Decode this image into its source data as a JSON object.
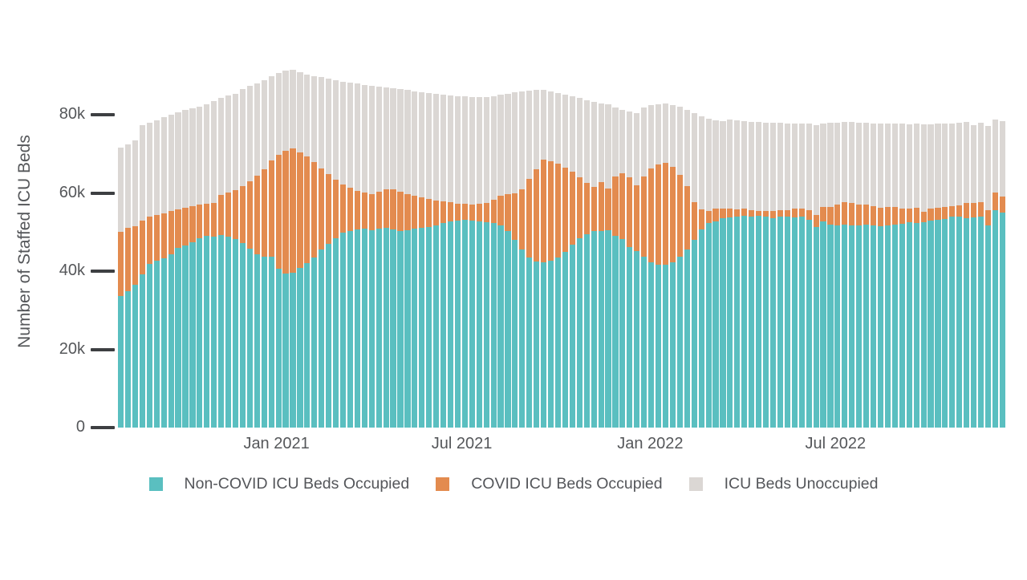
{
  "chart": {
    "y_axis": {
      "title": "Number of Staffed ICU Beds",
      "ticks": [
        {
          "label": "0",
          "value": 0
        },
        {
          "label": "20k",
          "value": 20
        },
        {
          "label": "40k",
          "value": 40
        },
        {
          "label": "60k",
          "value": 60
        },
        {
          "label": "80k",
          "value": 80
        }
      ]
    },
    "x_axis": {
      "ticks": [
        {
          "label": "Jan 2021",
          "date": "2021-01-01"
        },
        {
          "label": "Jul 2021",
          "date": "2021-07-01"
        },
        {
          "label": "Jan 2022",
          "date": "2022-01-01"
        },
        {
          "label": "Jul 2022",
          "date": "2022-07-01"
        }
      ]
    },
    "colors": {
      "non_covid": "#5abfc0",
      "covid": "#e38b4f",
      "unoccupied": "#dbd7d4",
      "tick_mark": "#3d3f42",
      "text": "#55575a",
      "background": "#ffffff"
    }
  },
  "chart_data": {
    "type": "bar",
    "stacked": true,
    "orientation": "vertical",
    "title": "",
    "xlabel": "",
    "ylabel": "Number of Staffed ICU Beds",
    "unit": "thousands of beds",
    "ylim": [
      0,
      92.9
    ],
    "y_tick_labels": [
      "0",
      "20k",
      "40k",
      "60k",
      "80k"
    ],
    "x_tick_labels": [
      "Jan 2021",
      "Jul 2021",
      "Jan 2022",
      "Jul 2022"
    ],
    "legend_position": "bottom",
    "grid": false,
    "x_step_days": 7,
    "x": [
      "2020-08-02",
      "2020-08-09",
      "2020-08-16",
      "2020-08-23",
      "2020-08-30",
      "2020-09-06",
      "2020-09-13",
      "2020-09-20",
      "2020-09-27",
      "2020-10-04",
      "2020-10-11",
      "2020-10-18",
      "2020-10-25",
      "2020-11-01",
      "2020-11-08",
      "2020-11-15",
      "2020-11-22",
      "2020-11-29",
      "2020-12-06",
      "2020-12-13",
      "2020-12-20",
      "2020-12-27",
      "2021-01-03",
      "2021-01-10",
      "2021-01-17",
      "2021-01-24",
      "2021-01-31",
      "2021-02-07",
      "2021-02-14",
      "2021-02-21",
      "2021-02-28",
      "2021-03-07",
      "2021-03-14",
      "2021-03-21",
      "2021-03-28",
      "2021-04-04",
      "2021-04-11",
      "2021-04-18",
      "2021-04-25",
      "2021-05-02",
      "2021-05-09",
      "2021-05-16",
      "2021-05-23",
      "2021-05-30",
      "2021-06-06",
      "2021-06-13",
      "2021-06-20",
      "2021-06-27",
      "2021-07-04",
      "2021-07-11",
      "2021-07-18",
      "2021-07-25",
      "2021-08-01",
      "2021-08-08",
      "2021-08-15",
      "2021-08-22",
      "2021-08-29",
      "2021-09-05",
      "2021-09-12",
      "2021-09-19",
      "2021-09-26",
      "2021-10-03",
      "2021-10-10",
      "2021-10-17",
      "2021-10-24",
      "2021-10-31",
      "2021-11-07",
      "2021-11-14",
      "2021-11-21",
      "2021-11-28",
      "2021-12-05",
      "2021-12-12",
      "2021-12-19",
      "2021-12-26",
      "2022-01-02",
      "2022-01-09",
      "2022-01-16",
      "2022-01-23",
      "2022-01-30",
      "2022-02-06",
      "2022-02-13",
      "2022-02-20",
      "2022-02-27",
      "2022-03-06",
      "2022-03-13",
      "2022-03-20",
      "2022-03-27",
      "2022-04-03",
      "2022-04-10",
      "2022-04-17",
      "2022-04-24",
      "2022-05-01",
      "2022-05-08",
      "2022-05-15",
      "2022-05-22",
      "2022-05-29",
      "2022-06-05",
      "2022-06-12",
      "2022-06-19",
      "2022-06-26",
      "2022-07-03",
      "2022-07-10",
      "2022-07-17",
      "2022-07-24",
      "2022-07-31",
      "2022-08-07",
      "2022-08-14",
      "2022-08-21",
      "2022-08-28",
      "2022-09-04",
      "2022-09-11",
      "2022-09-18",
      "2022-09-25",
      "2022-10-02",
      "2022-10-09",
      "2022-10-16",
      "2022-10-23",
      "2022-10-30",
      "2022-11-06",
      "2022-11-13",
      "2022-11-20",
      "2022-11-27",
      "2022-12-04",
      "2022-12-11"
    ],
    "series": [
      {
        "id": "non-covid-icu-beds-occupied",
        "name": "Non-COVID ICU Beds Occupied",
        "color": "#5abfc0",
        "values": [
          33.7,
          34.8,
          36.5,
          39.1,
          41.8,
          42.6,
          43.3,
          44.3,
          46.0,
          46.6,
          47.4,
          48.4,
          49.1,
          48.8,
          49.2,
          48.8,
          48.2,
          47.2,
          45.8,
          44.3,
          43.6,
          43.8,
          40.6,
          39.4,
          39.6,
          40.8,
          42.0,
          43.5,
          45.5,
          47.0,
          48.5,
          49.8,
          50.3,
          50.6,
          50.8,
          50.5,
          50.8,
          51.0,
          50.6,
          50.3,
          50.5,
          50.8,
          51.0,
          51.3,
          51.8,
          52.3,
          52.8,
          53.0,
          53.2,
          53.0,
          52.8,
          52.5,
          52.3,
          51.8,
          50.2,
          48.0,
          45.5,
          43.5,
          42.5,
          42.3,
          42.6,
          43.5,
          45.0,
          46.8,
          48.5,
          49.5,
          50.2,
          50.2,
          50.4,
          49.0,
          48.3,
          46.2,
          45.2,
          43.7,
          42.3,
          41.7,
          41.6,
          42.3,
          43.6,
          45.6,
          48.1,
          50.6,
          52.3,
          52.8,
          53.6,
          53.8,
          54.0,
          54.1,
          53.9,
          54.1,
          54.0,
          53.6,
          53.9,
          53.9,
          53.7,
          54.0,
          53.2,
          51.3,
          52.8,
          52.0,
          51.8,
          51.9,
          51.8,
          51.6,
          51.9,
          51.6,
          51.5,
          51.8,
          52.0,
          52.2,
          52.5,
          52.3,
          52.5,
          52.9,
          53.2,
          53.4,
          53.9,
          54.0,
          53.5,
          53.7,
          53.9,
          51.8,
          55.6,
          54.9
        ]
      },
      {
        "id": "covid-icu-beds-occupied",
        "name": "COVID ICU Beds Occupied",
        "color": "#e38b4f",
        "values": [
          16.4,
          16.2,
          15.0,
          13.8,
          12.1,
          11.8,
          11.5,
          11.0,
          9.7,
          9.7,
          9.2,
          8.6,
          8.2,
          8.6,
          10.3,
          11.4,
          12.6,
          14.6,
          17.2,
          20.2,
          22.4,
          24.5,
          29.1,
          31.4,
          31.7,
          29.5,
          27.3,
          24.3,
          20.8,
          17.8,
          14.8,
          12.4,
          11.0,
          10.0,
          9.3,
          9.2,
          9.5,
          9.9,
          10.3,
          10.0,
          9.3,
          8.5,
          7.8,
          7.1,
          6.3,
          5.5,
          4.8,
          4.3,
          4.0,
          4.1,
          4.4,
          5.0,
          6.0,
          7.5,
          9.5,
          12.0,
          15.5,
          20.0,
          23.5,
          26.2,
          25.6,
          24.0,
          21.5,
          18.7,
          15.5,
          13.0,
          11.3,
          12.5,
          10.8,
          15.3,
          16.7,
          17.8,
          16.8,
          20.6,
          24.0,
          25.6,
          26.0,
          24.4,
          21.1,
          16.1,
          9.6,
          5.2,
          3.0,
          3.2,
          2.5,
          2.2,
          1.8,
          1.9,
          1.6,
          1.3,
          1.4,
          1.8,
          1.6,
          1.7,
          2.3,
          2.1,
          2.4,
          3.0,
          3.7,
          4.5,
          5.3,
          5.7,
          5.6,
          5.5,
          5.2,
          5.1,
          4.8,
          4.6,
          4.4,
          3.9,
          3.5,
          4.0,
          2.8,
          3.1,
          3.1,
          3.0,
          2.7,
          2.8,
          3.9,
          3.8,
          3.7,
          3.8,
          4.6,
          4.1
        ]
      },
      {
        "id": "icu-beds-unoccupied",
        "name": "ICU Beds Unoccupied",
        "color": "#dbd7d4",
        "values": [
          21.5,
          21.4,
          21.9,
          24.5,
          24.1,
          24.2,
          24.5,
          24.7,
          25.0,
          24.9,
          25.0,
          25.0,
          25.4,
          26.1,
          24.8,
          24.8,
          24.6,
          24.7,
          24.3,
          23.5,
          22.8,
          21.5,
          21.0,
          20.5,
          20.2,
          20.5,
          21.0,
          22.0,
          23.3,
          24.4,
          25.5,
          26.3,
          26.9,
          27.4,
          27.6,
          27.7,
          26.9,
          26.1,
          25.9,
          26.2,
          26.5,
          26.7,
          27.0,
          27.2,
          27.3,
          27.4,
          27.4,
          27.5,
          27.5,
          27.5,
          27.3,
          27.1,
          26.5,
          25.8,
          25.7,
          25.7,
          25.0,
          22.7,
          20.4,
          17.8,
          17.8,
          18.1,
          18.7,
          19.3,
          20.3,
          21.3,
          21.8,
          20.2,
          21.4,
          17.6,
          16.3,
          16.9,
          18.4,
          17.6,
          16.1,
          15.4,
          15.2,
          15.7,
          17.3,
          19.6,
          22.7,
          23.8,
          23.7,
          22.6,
          22.3,
          22.7,
          22.7,
          22.3,
          22.7,
          22.7,
          22.6,
          22.5,
          22.4,
          22.2,
          21.8,
          21.7,
          22.1,
          23.0,
          21.3,
          21.4,
          20.9,
          20.6,
          20.7,
          20.9,
          20.8,
          21.1,
          21.4,
          21.3,
          21.4,
          21.6,
          21.6,
          21.4,
          22.2,
          21.6,
          21.4,
          21.3,
          21.2,
          21.2,
          20.7,
          19.9,
          20.4,
          21.6,
          18.6,
          19.3
        ]
      }
    ]
  }
}
